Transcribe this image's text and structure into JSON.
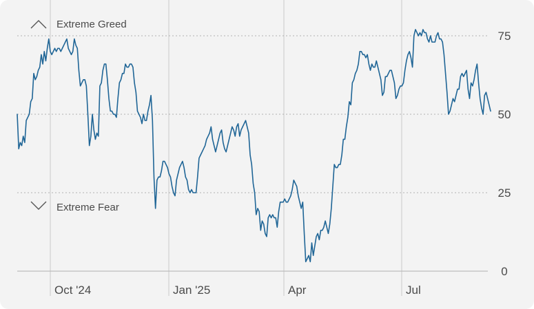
{
  "chart_data": {
    "type": "line",
    "title": "",
    "xlabel": "",
    "ylabel": "",
    "ylim": [
      0,
      100
    ],
    "y_ticks": [
      0,
      25,
      50,
      75
    ],
    "grid": "horizontal dotted at 25, 50, 75; vertical solid at month markers",
    "x_tick_labels": [
      "Oct '24",
      "Jan '25",
      "Apr",
      "Jul"
    ],
    "zone_labels": {
      "top": "Extreme Greed",
      "bottom": "Extreme Fear"
    },
    "colors": {
      "line": "#1f6596",
      "grid": "#c9c9c9",
      "background": "#f3f3f3",
      "text": "#4a4a4a"
    },
    "icons": {
      "top": "chevron-up-icon",
      "bottom": "chevron-down-icon"
    },
    "series": [
      {
        "values": [
          50,
          39,
          41,
          40,
          43,
          41,
          48,
          49,
          50,
          54,
          55,
          63,
          61,
          62,
          64,
          65,
          69,
          66,
          70,
          67,
          71,
          74,
          70,
          69,
          70,
          71,
          70,
          71,
          71,
          70,
          71,
          72,
          73,
          74,
          71,
          70,
          69,
          70,
          74,
          72,
          71,
          64,
          59,
          60,
          61,
          61,
          59,
          50,
          40,
          43,
          50,
          45,
          42,
          44,
          43,
          59,
          60,
          64,
          66,
          66,
          61,
          55,
          51,
          51,
          50,
          50,
          49,
          55,
          60,
          61,
          63,
          63,
          66,
          65,
          65,
          66,
          66,
          65,
          60,
          57,
          51,
          50,
          49,
          47,
          50,
          48,
          48,
          51,
          53,
          56,
          48,
          30,
          20,
          29,
          30,
          30,
          32,
          35,
          35,
          34,
          33,
          31,
          30,
          27,
          25,
          24,
          29,
          31,
          33,
          34,
          35,
          33,
          30,
          29,
          26,
          25,
          26,
          25,
          25,
          25,
          30,
          36,
          37,
          38,
          39,
          40,
          42,
          43,
          44,
          46,
          42,
          40,
          38,
          40,
          42,
          44,
          45,
          41,
          39,
          38,
          40,
          42,
          44,
          46,
          45,
          43,
          46,
          47,
          43,
          45,
          46,
          47,
          48,
          46,
          44,
          37,
          34,
          28,
          25,
          18,
          20,
          19,
          13,
          16,
          15,
          12,
          11,
          17,
          18,
          17,
          18,
          17,
          17,
          14,
          19,
          22,
          22,
          22,
          23,
          22,
          22,
          23,
          24,
          26,
          29,
          28,
          27,
          24,
          22,
          20,
          22,
          12,
          3,
          4,
          5,
          3,
          9,
          5,
          8,
          11,
          12,
          10,
          13,
          13,
          14,
          16,
          14,
          12,
          15,
          20,
          27,
          34,
          33,
          33,
          34,
          34,
          37,
          42,
          42,
          46,
          49,
          54,
          53,
          60,
          61,
          63,
          64,
          66,
          70,
          70,
          69,
          69,
          68,
          69,
          66,
          64,
          66,
          65,
          65,
          67,
          65,
          63,
          61,
          56,
          57,
          62,
          62,
          63,
          64,
          64,
          62,
          60,
          55,
          56,
          58,
          59,
          59,
          60,
          64,
          67,
          69,
          70,
          68,
          65,
          75,
          77,
          76,
          75,
          76,
          75,
          77,
          76,
          76,
          74,
          73,
          75,
          73,
          73,
          73,
          75,
          76,
          74,
          74,
          73,
          69,
          63,
          57,
          50,
          51,
          53,
          55,
          54,
          56,
          58,
          58,
          62,
          63,
          62,
          63,
          64,
          58,
          55,
          60,
          59,
          61,
          64,
          66,
          60,
          55,
          52,
          50,
          56,
          57,
          55,
          53,
          51
        ]
      }
    ]
  }
}
